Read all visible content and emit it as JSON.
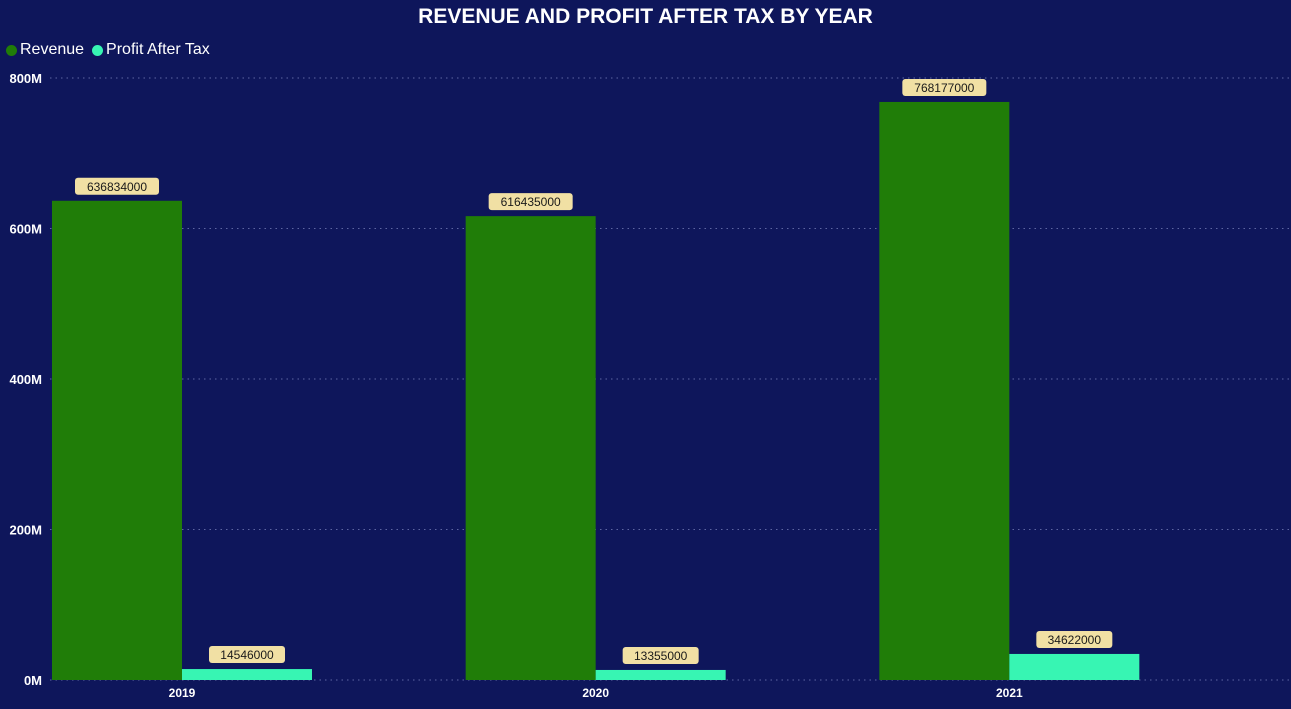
{
  "chart_data": {
    "type": "bar",
    "title": "REVENUE AND PROFIT AFTER TAX BY YEAR",
    "xlabel": "",
    "ylabel": "",
    "categories": [
      "2019",
      "2020",
      "2021"
    ],
    "series": [
      {
        "name": "Revenue",
        "color": "#207d08",
        "values": [
          636834000,
          616435000,
          768177000
        ],
        "labels": [
          "636834000",
          "616435000",
          "768177000"
        ]
      },
      {
        "name": "Profit After Tax",
        "color": "#37f5b3",
        "values": [
          14546000,
          13355000,
          34622000
        ],
        "labels": [
          "14546000",
          "13355000",
          "34622000"
        ]
      }
    ],
    "ylim": [
      0,
      800000000
    ],
    "yticks": [
      {
        "value": 0,
        "label": "0M"
      },
      {
        "value": 200000000,
        "label": "200M"
      },
      {
        "value": 400000000,
        "label": "400M"
      },
      {
        "value": 600000000,
        "label": "600M"
      },
      {
        "value": 800000000,
        "label": "800M"
      }
    ],
    "grid": true,
    "legend_position": "top-left"
  },
  "colors": {
    "background": "#0e165b",
    "text": "#ffffff",
    "gridline": "#5e66a3",
    "data_label_bg": "#f1e0a4",
    "data_label_text": "#1a1a1a"
  }
}
